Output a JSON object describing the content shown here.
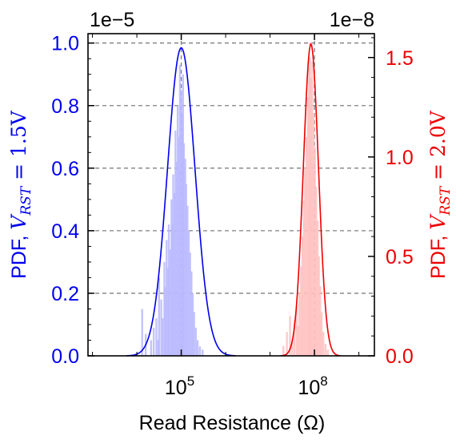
{
  "chart_data": {
    "type": "area",
    "xlabel": "Read Resistance (Ω)",
    "x_scale": "log",
    "x_range_log10": [
      2.9,
      9.35
    ],
    "x_ticks": [
      {
        "log10": 5,
        "base": "10",
        "exp": "5"
      },
      {
        "log10": 8,
        "base": "10",
        "exp": "8"
      }
    ],
    "grid": true,
    "y_left": {
      "label_prefix": "PDF, ",
      "label_var": "V",
      "label_sub": "RST",
      "label_value": " = 1.5V",
      "scale_label": "1e−5",
      "multiplier": 1e-05,
      "ylim": [
        0,
        1.03
      ],
      "ticks": [
        "0.0",
        "0.2",
        "0.4",
        "0.6",
        "0.8",
        "1.0"
      ],
      "color": "#0000ee"
    },
    "y_right": {
      "label_prefix": "PDF, ",
      "label_var": "V",
      "label_sub": "RST",
      "label_value": " = 2.0V",
      "scale_label": "1e−8",
      "multiplier": 1e-08,
      "ylim": [
        0,
        1.62
      ],
      "ticks": [
        "0.0",
        "0.5",
        "1.0",
        "1.5"
      ],
      "color": "#ee0000"
    },
    "series": [
      {
        "axis": "left",
        "color": "#0000ee",
        "fill": "#b8b8ff",
        "curve": {
          "log10_center": 5.0,
          "sigma": 0.31,
          "peak": 0.985
        },
        "histogram": [
          [
            4.12,
            0.15
          ],
          [
            4.2,
            0.07
          ],
          [
            4.32,
            0.05
          ],
          [
            4.38,
            0.09
          ],
          [
            4.44,
            0.12
          ],
          [
            4.48,
            0.05
          ],
          [
            4.5,
            0.25
          ],
          [
            4.55,
            0.18
          ],
          [
            4.58,
            0.12
          ],
          [
            4.62,
            0.3
          ],
          [
            4.64,
            0.22
          ],
          [
            4.67,
            0.37
          ],
          [
            4.7,
            0.28
          ],
          [
            4.72,
            0.42
          ],
          [
            4.75,
            0.34
          ],
          [
            4.78,
            0.5
          ],
          [
            4.8,
            0.42
          ],
          [
            4.82,
            0.58
          ],
          [
            4.85,
            0.52
          ],
          [
            4.87,
            0.72
          ],
          [
            4.9,
            0.62
          ],
          [
            4.92,
            0.8
          ],
          [
            4.95,
            0.7
          ],
          [
            4.97,
            0.93
          ],
          [
            5.0,
            0.85
          ],
          [
            5.02,
            0.77
          ],
          [
            5.04,
            0.9
          ],
          [
            5.06,
            0.68
          ],
          [
            5.09,
            0.63
          ],
          [
            5.11,
            0.55
          ],
          [
            5.14,
            0.48
          ],
          [
            5.17,
            0.4
          ],
          [
            5.2,
            0.33
          ],
          [
            5.23,
            0.27
          ],
          [
            5.26,
            0.2
          ],
          [
            5.29,
            0.14
          ],
          [
            5.33,
            0.09
          ],
          [
            5.37,
            0.05
          ],
          [
            5.42,
            0.03
          ],
          [
            5.48,
            0.02
          ]
        ]
      },
      {
        "axis": "right",
        "color": "#ee0000",
        "fill": "#ffc0c0",
        "curve": {
          "log10_center": 7.92,
          "sigma": 0.17,
          "peak": 1.57
        },
        "histogram": [
          [
            7.3,
            0.05
          ],
          [
            7.38,
            0.12
          ],
          [
            7.45,
            0.2
          ],
          [
            7.5,
            0.08
          ],
          [
            7.55,
            0.18
          ],
          [
            7.6,
            0.25
          ],
          [
            7.63,
            0.15
          ],
          [
            7.66,
            0.32
          ],
          [
            7.7,
            0.45
          ],
          [
            7.73,
            0.6
          ],
          [
            7.76,
            0.78
          ],
          [
            7.79,
            0.95
          ],
          [
            7.82,
            1.1
          ],
          [
            7.85,
            1.3
          ],
          [
            7.88,
            1.45
          ],
          [
            7.9,
            1.5
          ],
          [
            7.92,
            1.4
          ],
          [
            7.95,
            1.48
          ],
          [
            7.98,
            1.22
          ],
          [
            8.01,
            1.05
          ],
          [
            8.04,
            0.85
          ],
          [
            8.07,
            0.68
          ],
          [
            8.1,
            0.5
          ],
          [
            8.13,
            0.35
          ],
          [
            8.16,
            0.22
          ],
          [
            8.2,
            0.12
          ],
          [
            8.25,
            0.06
          ],
          [
            8.3,
            0.03
          ]
        ]
      }
    ]
  }
}
